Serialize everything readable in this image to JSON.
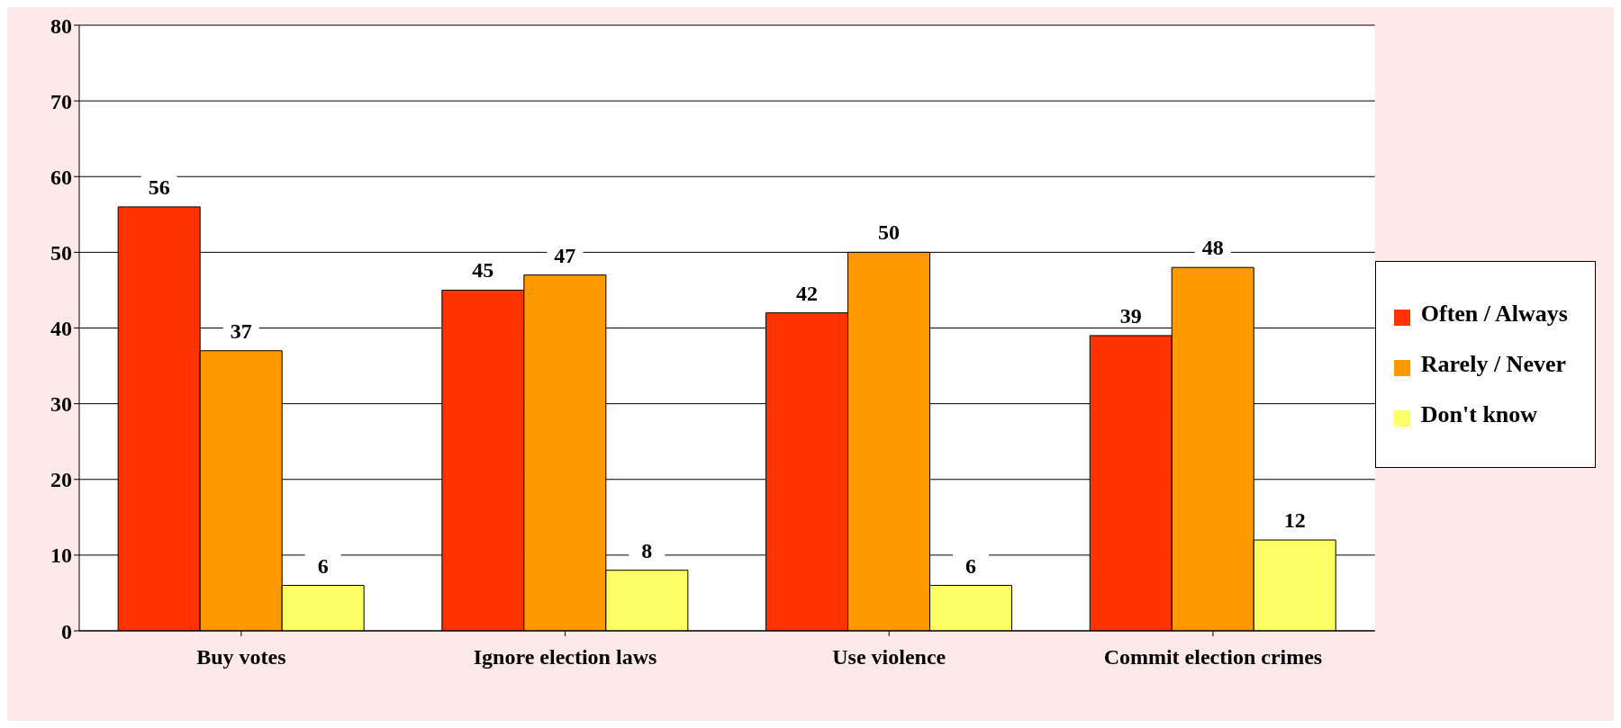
{
  "chart_data": {
    "type": "bar",
    "categories": [
      "Buy votes",
      "Ignore election laws",
      "Use violence",
      "Commit election crimes"
    ],
    "series": [
      {
        "name": "Often / Always",
        "color": "#ff3300",
        "values": [
          56,
          45,
          42,
          39
        ]
      },
      {
        "name": "Rarely / Never",
        "color": "#ff9900",
        "values": [
          37,
          47,
          50,
          48
        ]
      },
      {
        "name": "Don't know",
        "color": "#ffff66",
        "values": [
          6,
          8,
          6,
          12
        ]
      }
    ],
    "ylim": [
      0,
      80
    ],
    "yticks": [
      0,
      10,
      20,
      30,
      40,
      50,
      60,
      70,
      80
    ],
    "grid": "y",
    "legend": "right",
    "data_labels": true
  }
}
